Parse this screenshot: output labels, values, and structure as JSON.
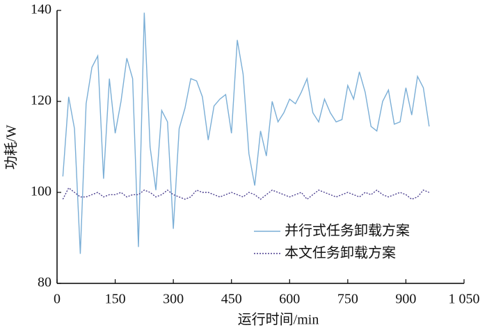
{
  "chart_data": {
    "type": "line",
    "xlabel": "运行时间/min",
    "ylabel": "功耗/W",
    "x": [
      15,
      30,
      45,
      60,
      75,
      90,
      105,
      120,
      135,
      150,
      165,
      180,
      195,
      210,
      225,
      240,
      255,
      270,
      285,
      300,
      315,
      330,
      345,
      360,
      375,
      390,
      405,
      420,
      435,
      450,
      465,
      480,
      495,
      510,
      525,
      540,
      555,
      570,
      585,
      600,
      615,
      630,
      645,
      660,
      675,
      690,
      705,
      720,
      735,
      750,
      765,
      780,
      795,
      810,
      825,
      840,
      855,
      870,
      885,
      900,
      915,
      930,
      945,
      960
    ],
    "series": [
      {
        "name": "并行式任务卸载方案",
        "color": "#7aaed6",
        "linestyle": "solid",
        "values": [
          103.5,
          121,
          114,
          86.5,
          119.5,
          127.5,
          130,
          103,
          125,
          113,
          120,
          129.5,
          125,
          88,
          139.5,
          110,
          100.5,
          118,
          115.5,
          92,
          114,
          118.5,
          125,
          124.5,
          121,
          111.5,
          119,
          120.5,
          121.5,
          113,
          133.5,
          126,
          108.5,
          101.5,
          113.5,
          108,
          120,
          115.5,
          117.5,
          120.5,
          119.5,
          122,
          125,
          117.5,
          115.5,
          120.5,
          117.5,
          115.5,
          116,
          123.5,
          120.5,
          126.5,
          122,
          114.5,
          113.5,
          120,
          122.5,
          115,
          115.5,
          123,
          117,
          125.5,
          123,
          114.5
        ]
      },
      {
        "name": "本文任务卸载方案",
        "color": "#4b3f8f",
        "linestyle": "dotted",
        "values": [
          98.5,
          101,
          100,
          99,
          99,
          99.5,
          100,
          99,
          99.5,
          99.5,
          100,
          99,
          99.5,
          99.5,
          100.5,
          100,
          99,
          99.5,
          100.5,
          99.5,
          99,
          98.5,
          99,
          100.5,
          100,
          100,
          99.5,
          99,
          99.5,
          100,
          99.5,
          99,
          100,
          99.5,
          98.5,
          99.5,
          100.5,
          100,
          99.5,
          99,
          99.5,
          100,
          98.5,
          99.5,
          100.5,
          100,
          99.5,
          99,
          99.5,
          100,
          99.5,
          99,
          100,
          99.5,
          100.5,
          99.5,
          99,
          99.5,
          100,
          99.5,
          98.5,
          99,
          100.5,
          100
        ]
      }
    ],
    "xlim": [
      0,
      1050
    ],
    "xticks": [
      0,
      150,
      300,
      450,
      600,
      750,
      900,
      {
        "value": 1050,
        "label": "1 050"
      }
    ],
    "ylim": [
      80,
      140
    ],
    "yticks": [
      80,
      100,
      120,
      140
    ],
    "legend": "lower right",
    "grid": false
  }
}
